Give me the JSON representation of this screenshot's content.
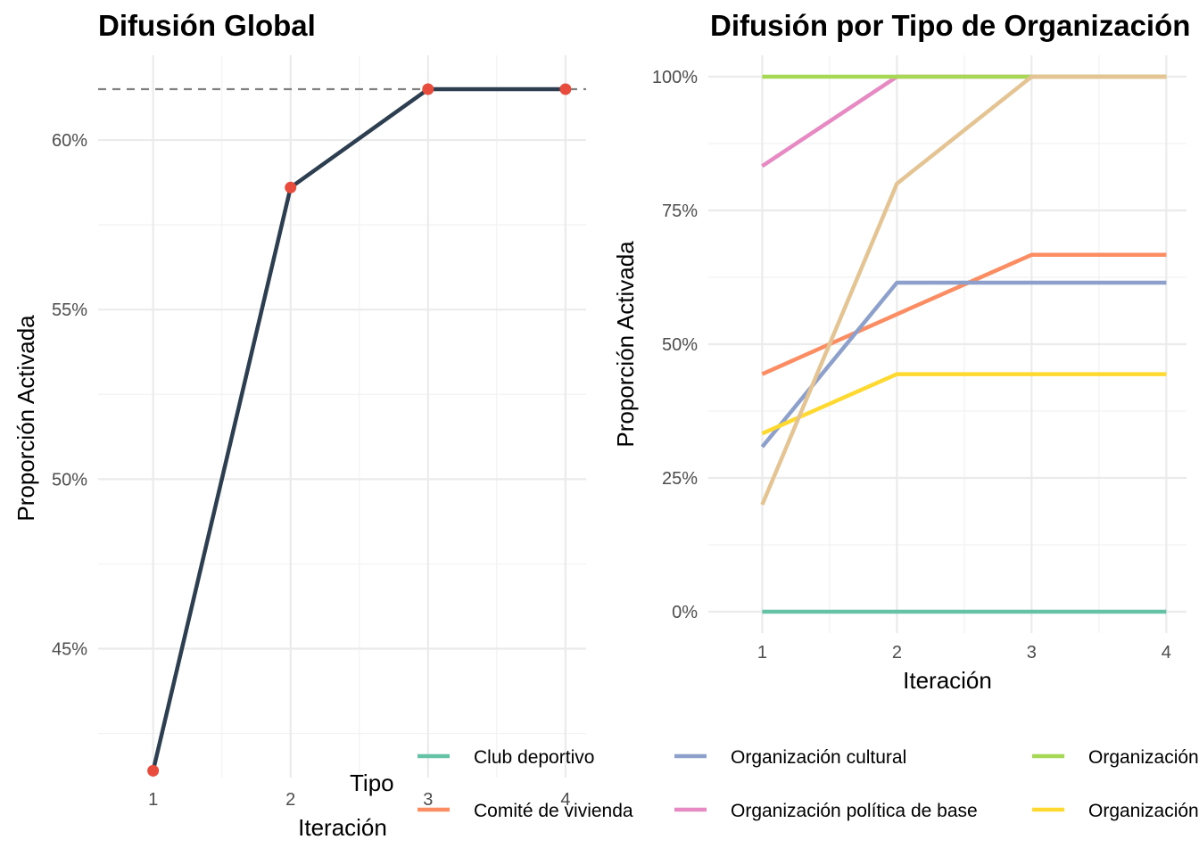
{
  "chart_data": [
    {
      "type": "line",
      "title": "Difusión Global",
      "xlabel": "Iteración",
      "ylabel": "Proporción Activada",
      "x": [
        1,
        2,
        3,
        4
      ],
      "xticks": [
        "1",
        "2",
        "3",
        "4"
      ],
      "ylim": [
        41.2,
        62.5
      ],
      "yticks": [
        45,
        50,
        55,
        60
      ],
      "yticklabels": [
        "45%",
        "50%",
        "55%",
        "60%"
      ],
      "series": [
        {
          "values": [
            41.4,
            58.6,
            61.5,
            61.5
          ],
          "color": "#2c3e50",
          "point_color": "#e74c3c"
        }
      ],
      "reference_line": {
        "y": 61.5,
        "style": "dashed",
        "color": "#808080"
      },
      "grid": true
    },
    {
      "type": "line",
      "title": "Difusión por Tipo de Organización",
      "xlabel": "Iteración",
      "ylabel": "Proporción Activada",
      "x": [
        1,
        2,
        3,
        4
      ],
      "xticks": [
        "1",
        "2",
        "3",
        "4"
      ],
      "ylim": [
        -4,
        104
      ],
      "yticks": [
        0,
        25,
        50,
        75,
        100
      ],
      "yticklabels": [
        "0%",
        "25%",
        "50%",
        "75%",
        "100%"
      ],
      "grid": true,
      "legend": {
        "title": "Tipo",
        "position": "bottom"
      },
      "series": [
        {
          "name": "Club deportivo",
          "values": [
            0,
            0,
            0,
            0
          ],
          "color": "#66c2a5"
        },
        {
          "name": "Comité de vivienda",
          "values": [
            44.4,
            55.6,
            66.7,
            66.7
          ],
          "color": "#fc8d62"
        },
        {
          "name": "Organización cultural",
          "values": [
            30.8,
            61.5,
            61.5,
            61.5
          ],
          "color": "#8da0cb"
        },
        {
          "name": "Organización política de base",
          "values": [
            83.3,
            100,
            100,
            100
          ],
          "color": "#e78ac3"
        },
        {
          "name": "Organización",
          "values": [
            100,
            100,
            100,
            100
          ],
          "color": "#a6d854"
        },
        {
          "name": "Organización",
          "values": [
            33.3,
            44.4,
            44.4,
            44.4
          ],
          "color": "#ffd92f"
        },
        {
          "values": [
            20,
            80,
            100,
            100
          ],
          "color": "#e5c494"
        }
      ]
    }
  ]
}
